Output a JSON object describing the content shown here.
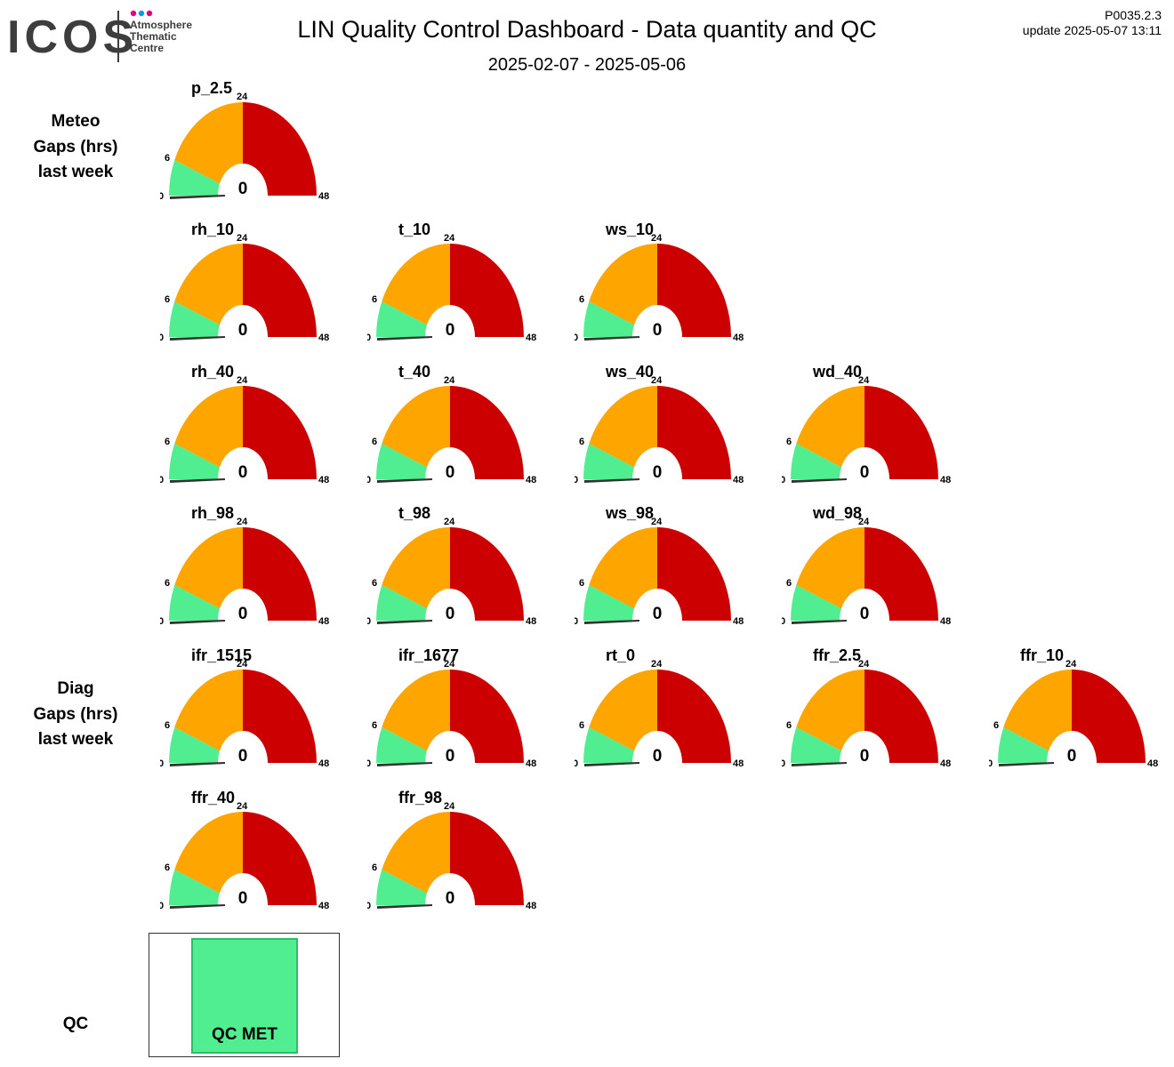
{
  "header": {
    "logo": "ICOS",
    "logo_subtitle": [
      "Atmosphere",
      "Thematic",
      "Centre"
    ],
    "title": "LIN  Quality Control Dashboard - Data quantity and QC",
    "date_range": "2025-02-07 - 2025-05-06",
    "version": "P0035.2.3",
    "update": "update  2025-05-07 13:11"
  },
  "sections": {
    "meteo": [
      "Meteo",
      "Gaps (hrs)",
      "last week"
    ],
    "diag": [
      "Diag",
      "Gaps (hrs)",
      "last week"
    ],
    "qc": "QC"
  },
  "gauge_scale": {
    "min": 0,
    "green_max": 6,
    "orange_max": 24,
    "max": 48,
    "tick_labels": [
      "0",
      "6",
      "24",
      "48"
    ]
  },
  "colors": {
    "green": "#50ee90",
    "orange": "#ffa500",
    "red": "#cc0000",
    "needle": "#333333"
  },
  "gauges": [
    {
      "name": "p_2.5",
      "value": 0
    },
    {
      "name": "rh_10",
      "value": 0
    },
    {
      "name": "t_10",
      "value": 0
    },
    {
      "name": "ws_10",
      "value": 0
    },
    {
      "name": "rh_40",
      "value": 0
    },
    {
      "name": "t_40",
      "value": 0
    },
    {
      "name": "ws_40",
      "value": 0
    },
    {
      "name": "wd_40",
      "value": 0
    },
    {
      "name": "rh_98",
      "value": 0
    },
    {
      "name": "t_98",
      "value": 0
    },
    {
      "name": "ws_98",
      "value": 0
    },
    {
      "name": "wd_98",
      "value": 0
    },
    {
      "name": "ifr_1515",
      "value": 0
    },
    {
      "name": "ifr_1677",
      "value": 0
    },
    {
      "name": "rt_0",
      "value": 0
    },
    {
      "name": "ffr_2.5",
      "value": 0
    },
    {
      "name": "ffr_10",
      "value": 0
    },
    {
      "name": "ffr_40",
      "value": 0
    },
    {
      "name": "ffr_98",
      "value": 0
    }
  ],
  "qc": {
    "status": "QC MET"
  }
}
